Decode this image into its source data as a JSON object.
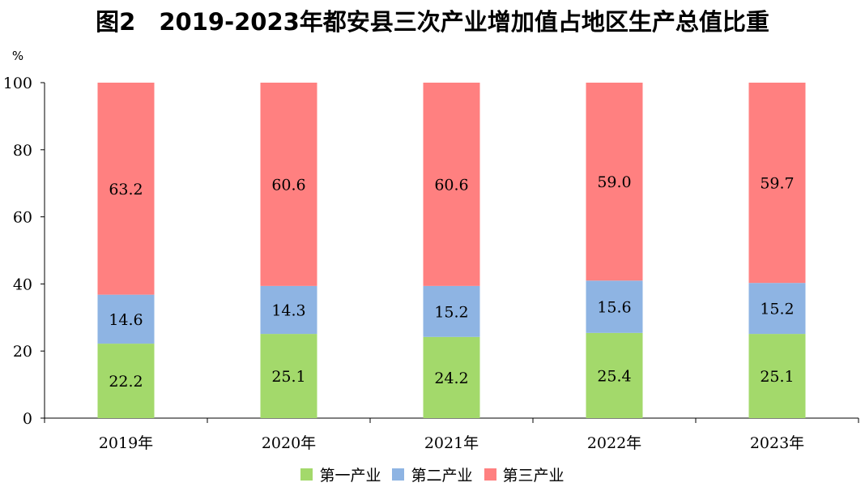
{
  "chart_data": {
    "type": "bar",
    "stacked": true,
    "title": "图2　2019-2023年都安县三次产业增加值占地区生产总值比重",
    "ylabel": "%",
    "xlabel": "",
    "ylim": [
      0,
      100
    ],
    "yticks": [
      "0",
      "20",
      "40",
      "60",
      "80",
      "100"
    ],
    "categories": [
      "2019年",
      "2020年",
      "2021年",
      "2022年",
      "2023年"
    ],
    "series": [
      {
        "name": "第一产业",
        "color": "#a3d96b",
        "values": [
          22.2,
          25.1,
          24.2,
          25.4,
          25.1
        ]
      },
      {
        "name": "第二产业",
        "color": "#8eb4e3",
        "values": [
          14.6,
          14.3,
          15.2,
          15.6,
          15.2
        ]
      },
      {
        "name": "第三产业",
        "color": "#ff8080",
        "values": [
          63.2,
          60.6,
          60.6,
          59.0,
          59.7
        ]
      }
    ],
    "legend": "bottom"
  }
}
